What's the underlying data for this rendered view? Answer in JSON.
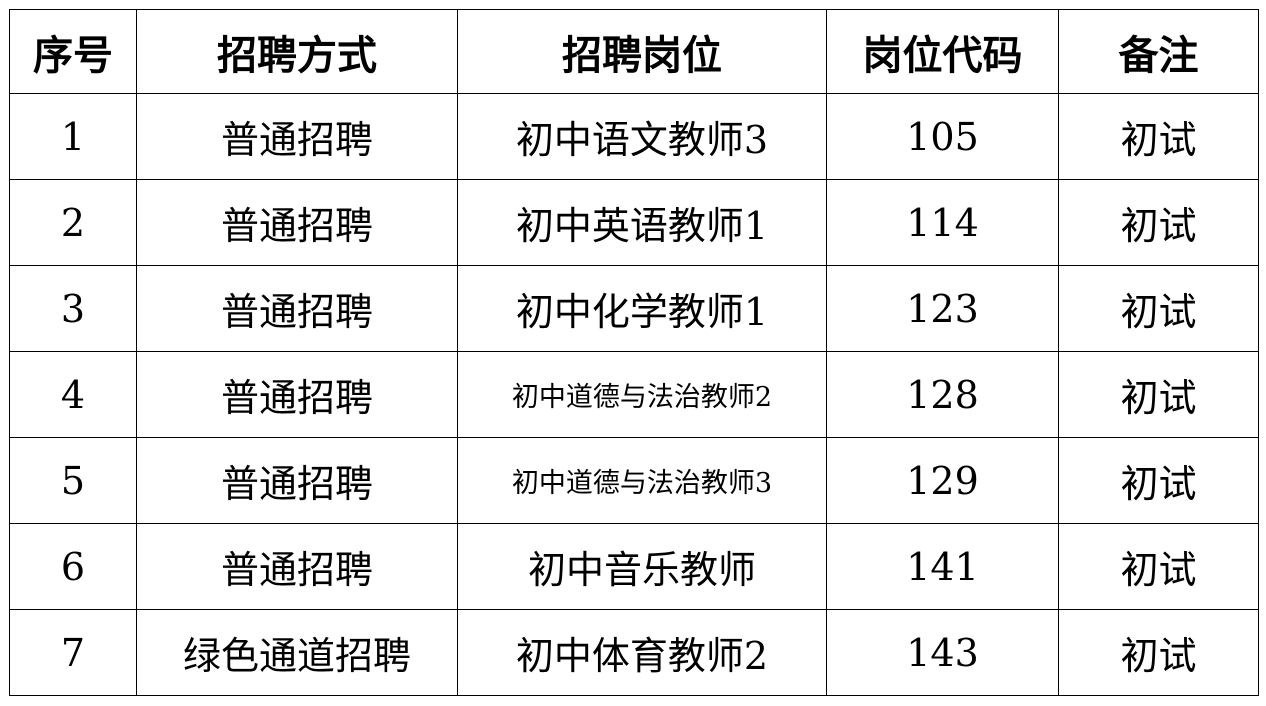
{
  "table": {
    "headers": [
      "序号",
      "招聘方式",
      "招聘岗位",
      "岗位代码",
      "备注"
    ],
    "rows": [
      [
        "1",
        "普通招聘",
        "初中语文教师3",
        "105",
        "初试"
      ],
      [
        "2",
        "普通招聘",
        "初中英语教师1",
        "114",
        "初试"
      ],
      [
        "3",
        "普通招聘",
        "初中化学教师1",
        "123",
        "初试"
      ],
      [
        "4",
        "普通招聘",
        "初中道德与法治教师2",
        "128",
        "初试"
      ],
      [
        "5",
        "普通招聘",
        "初中道德与法治教师3",
        "129",
        "初试"
      ],
      [
        "6",
        "普通招聘",
        "初中音乐教师",
        "141",
        "初试"
      ],
      [
        "7",
        "绿色通道招聘",
        "初中体育教师2",
        "143",
        "初试"
      ]
    ]
  }
}
